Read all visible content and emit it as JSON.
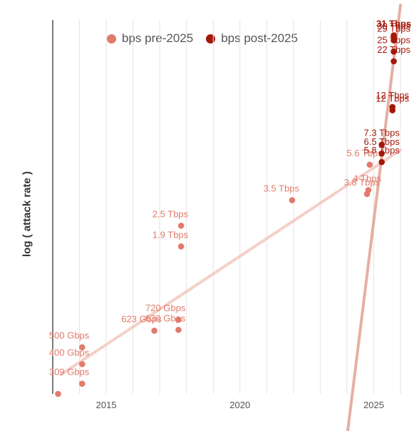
{
  "chart_data": {
    "type": "scatter",
    "ylabel": "log ( attack rate )",
    "xlabel": "",
    "xlim": [
      2013.0,
      2026.0
    ],
    "xticks": [
      2015,
      2020,
      2025
    ],
    "yscale": "log",
    "ylim_tbps": [
      0.27,
      38
    ],
    "grid": "vertical",
    "legend_position": "top",
    "series": [
      {
        "name": "bps pre-2025",
        "color": "#e07b6b",
        "points": [
          {
            "x": 2013.2,
            "y": 0.27,
            "label": ""
          },
          {
            "x": 2014.1,
            "y": 0.309,
            "label": "309 Gbps"
          },
          {
            "x": 2014.1,
            "y": 0.4,
            "label": "400 Gbps"
          },
          {
            "x": 2014.1,
            "y": 0.5,
            "label": "500 Gbps"
          },
          {
            "x": 2016.8,
            "y": 0.623,
            "label": "623 Gbps"
          },
          {
            "x": 2017.7,
            "y": 0.63,
            "label": "630 Gbps"
          },
          {
            "x": 2017.7,
            "y": 0.72,
            "label": "720 Gbps"
          },
          {
            "x": 2017.8,
            "y": 1.9,
            "label": "1.9 Tbps"
          },
          {
            "x": 2017.8,
            "y": 2.5,
            "label": "2.5 Tbps"
          },
          {
            "x": 2021.95,
            "y": 3.5,
            "label": "3.5 Tbps"
          },
          {
            "x": 2024.75,
            "y": 3.8,
            "label": "3.8 Tbps"
          },
          {
            "x": 2024.8,
            "y": 4.0,
            "label": "4 Tbps"
          },
          {
            "x": 2024.85,
            "y": 5.6,
            "label": "5.6 Tbps"
          }
        ],
        "trendline_color": "#f3c7bf"
      },
      {
        "name": "bps post-2025",
        "color": "#a3180a",
        "points": [
          {
            "x": 2025.3,
            "y": 5.8,
            "label": "5.8 Tbps"
          },
          {
            "x": 2025.3,
            "y": 6.5,
            "label": "6.5 Tbps"
          },
          {
            "x": 2025.3,
            "y": 7.3,
            "label": "7.3 Tbps"
          },
          {
            "x": 2025.7,
            "y": 11.5,
            "label": "12 Tbps"
          },
          {
            "x": 2025.7,
            "y": 12.0,
            "label": "12 Tbps"
          },
          {
            "x": 2025.75,
            "y": 22,
            "label": "22 Tbps"
          },
          {
            "x": 2025.75,
            "y": 25,
            "label": "25 Tbps"
          },
          {
            "x": 2025.75,
            "y": 29,
            "label": "29 Tbps"
          },
          {
            "x": 2025.75,
            "y": 30,
            "label": "30 Tbps"
          },
          {
            "x": 2025.75,
            "y": 31,
            "label": "31 Tbps"
          }
        ],
        "trendline_color": "#e2a293"
      }
    ]
  }
}
